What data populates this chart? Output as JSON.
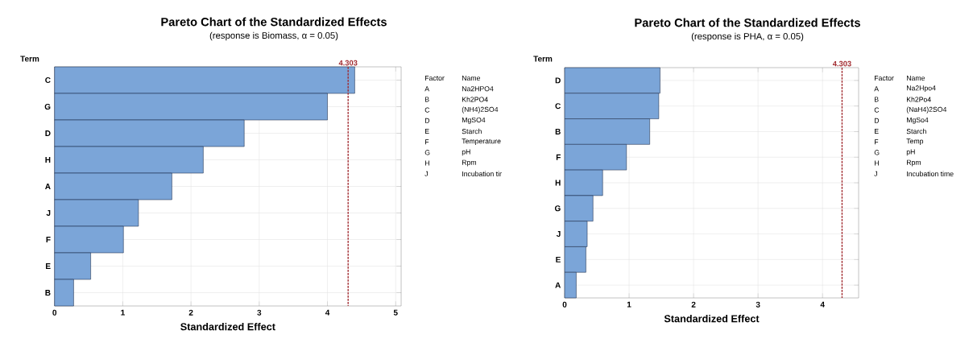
{
  "chart_data": [
    {
      "type": "bar",
      "orientation": "horizontal",
      "title": "Pareto Chart of the Standardized Effects",
      "subtitle": "(response is Biomass, α = 0.05)",
      "ylabel": "Term",
      "xlabel": "Standardized Effect",
      "categories": [
        "C",
        "G",
        "D",
        "H",
        "A",
        "J",
        "F",
        "E",
        "B"
      ],
      "values": [
        4.4,
        4.0,
        2.78,
        2.18,
        1.72,
        1.23,
        1.01,
        0.53,
        0.28
      ],
      "color": "#7ba5d8",
      "xlim": [
        0,
        5.08
      ],
      "xticks": [
        0,
        1,
        2,
        3,
        4,
        5
      ],
      "grid": true,
      "ref_lines": [
        {
          "axis": "x",
          "value": 4.303,
          "label": "4.303",
          "color": "#a0282d",
          "line_style": "dashed"
        }
      ],
      "annotations": [
        "Factor",
        "Name",
        "A",
        "Na2HPO4",
        "B",
        "Kh2PO4",
        "C",
        "(NH4)2SO4",
        "D",
        "MgSO4",
        "E",
        "Starch",
        "F",
        "Temperature",
        "G",
        "pH",
        "H",
        "Rpm",
        "J",
        "Incubation tir"
      ]
    },
    {
      "type": "bar",
      "orientation": "horizontal",
      "title": "Pareto Chart of the Standardized Effects",
      "subtitle": "(response is PHA, α = 0.05)",
      "ylabel": "Term",
      "xlabel": "Standardized Effect",
      "categories": [
        "D",
        "C",
        "B",
        "F",
        "H",
        "G",
        "J",
        "E",
        "A"
      ],
      "values": [
        1.48,
        1.46,
        1.32,
        0.96,
        0.59,
        0.44,
        0.35,
        0.33,
        0.18
      ],
      "color": "#7ba5d8",
      "xlim": [
        0,
        4.56
      ],
      "xticks": [
        0,
        1,
        2,
        3,
        4
      ],
      "grid": true,
      "ref_lines": [
        {
          "axis": "x",
          "value": 4.303,
          "label": "4.303",
          "color": "#a0282d",
          "line_style": "dashed"
        }
      ],
      "annotations": [
        "Factor",
        "Name",
        "A",
        "Na2Hpo4",
        "B",
        "Kh2Po4",
        "C",
        "(NaH4)2SO4",
        "D",
        "MgSo4",
        "E",
        "Starch",
        "F",
        "Temp",
        "G",
        "pH",
        "H",
        "Rpm",
        "J",
        "Incubation time"
      ]
    }
  ]
}
